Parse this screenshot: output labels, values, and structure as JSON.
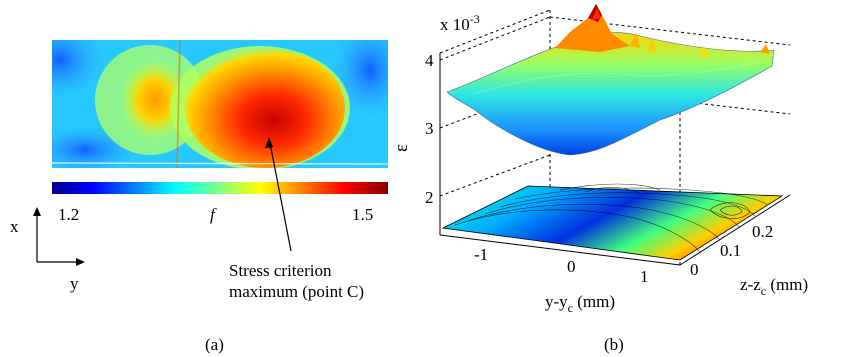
{
  "panel_a": {
    "label": "(a)",
    "colorbar": {
      "min_label": "1.2",
      "mid_label": "f",
      "max_label": "1.5"
    },
    "axes": {
      "x_label": "x",
      "y_label": "y"
    },
    "annotation": {
      "line1": "Stress criterion",
      "line2": "maximum (point C)"
    }
  },
  "panel_b": {
    "label": "(b)",
    "z_axis": {
      "label": "ε",
      "multiplier_prefix": "x 10",
      "multiplier_exponent": "-3",
      "ticks": [
        "2",
        "3",
        "4"
      ]
    },
    "y_axis": {
      "label_main": "y-y",
      "label_sub": "c",
      "label_unit": " (mm)",
      "ticks": [
        "-1",
        "0",
        "1"
      ]
    },
    "z_axis_horizontal": {
      "label_main": "z-z",
      "label_sub": "c",
      "label_unit": " (mm)",
      "ticks": [
        "0",
        "0.1",
        "0.2"
      ]
    }
  },
  "colors": {
    "colormap": [
      "#00008f",
      "#0000ff",
      "#0080ff",
      "#00ffff",
      "#80ff80",
      "#ffff00",
      "#ff8000",
      "#ff0000",
      "#800000"
    ]
  }
}
